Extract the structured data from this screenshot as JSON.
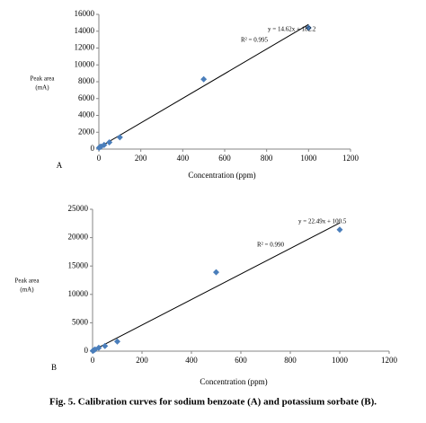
{
  "chart_data": [
    {
      "type": "scatter",
      "panel_label": "A",
      "y_label": "Peak area",
      "y_unit": "(mA)",
      "x_label": "Concentration (ppm)",
      "x": [
        1,
        5,
        10,
        25,
        50,
        100,
        500,
        1000
      ],
      "series": [
        {
          "color": "#4a7ebb",
          "values": [
            150,
            250,
            300,
            500,
            800,
            1400,
            8300,
            14400
          ]
        }
      ],
      "trendline": {
        "slope": 14.62,
        "intercept": 182.2,
        "equation": "y = 14.62x + 182.2",
        "r_squared": "R² = 0.995"
      },
      "xlim": [
        0,
        1200
      ],
      "xticks": [
        0,
        200,
        400,
        600,
        800,
        1000,
        1200
      ],
      "ylim": [
        0,
        16000
      ],
      "yticks": [
        0,
        2000,
        4000,
        6000,
        8000,
        10000,
        12000,
        14000,
        16000
      ]
    },
    {
      "type": "scatter",
      "panel_label": "B",
      "y_label": "Peak area",
      "y_unit": "(mA)",
      "x_label": "Concentration (ppm)",
      "x": [
        1,
        5,
        10,
        25,
        50,
        100,
        500,
        1000
      ],
      "series": [
        {
          "color": "#4a7ebb",
          "values": [
            50,
            150,
            300,
            600,
            900,
            1700,
            13900,
            21400
          ]
        }
      ],
      "trendline": {
        "slope": 22.49,
        "intercept": 100.5,
        "equation": "y = 22.49x + 100.5",
        "r_squared": "R² = 0.990"
      },
      "xlim": [
        0,
        1200
      ],
      "xticks": [
        0,
        200,
        400,
        600,
        800,
        1000,
        1200
      ],
      "ylim": [
        0,
        25000
      ],
      "yticks": [
        0,
        5000,
        10000,
        15000,
        20000,
        25000
      ]
    }
  ],
  "caption": "Fig. 5. Calibration curves for sodium benzoate (A) and potassium sorbate (B)."
}
